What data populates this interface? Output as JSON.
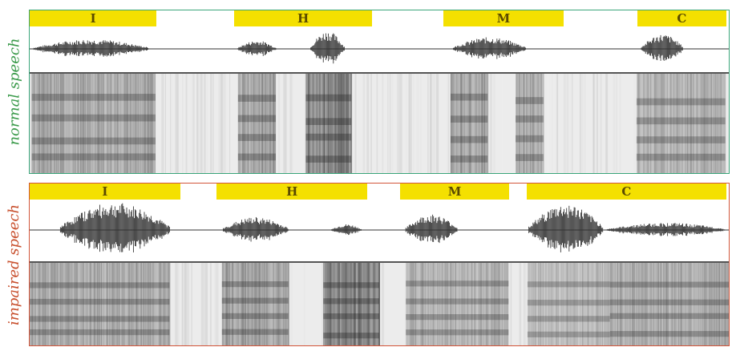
{
  "normal": {
    "label": "normal speech",
    "segments": [
      {
        "text": "I",
        "start": 0.0,
        "end": 0.182
      },
      {
        "text": "H",
        "start": 0.294,
        "end": 0.491
      },
      {
        "text": "M",
        "start": 0.594,
        "end": 0.766
      },
      {
        "text": "C",
        "start": 0.872,
        "end": 1.0
      }
    ],
    "bursts": [
      {
        "start": 0.006,
        "end": 0.17,
        "amp": 0.45
      },
      {
        "start": 0.298,
        "end": 0.352,
        "amp": 0.4
      },
      {
        "start": 0.402,
        "end": 0.45,
        "amp": 0.85
      },
      {
        "start": 0.606,
        "end": 0.71,
        "amp": 0.55
      },
      {
        "start": 0.875,
        "end": 0.935,
        "amp": 0.7
      }
    ],
    "spec_blocks": [
      {
        "start": 0.003,
        "end": 0.18,
        "dark": 0.55
      },
      {
        "start": 0.298,
        "end": 0.352,
        "dark": 0.6
      },
      {
        "start": 0.395,
        "end": 0.46,
        "dark": 0.8
      },
      {
        "start": 0.602,
        "end": 0.655,
        "dark": 0.6
      },
      {
        "start": 0.695,
        "end": 0.735,
        "dark": 0.55
      },
      {
        "start": 0.868,
        "end": 0.995,
        "dark": 0.5
      }
    ]
  },
  "impaired": {
    "label": "impaired speech",
    "segments": [
      {
        "text": "I",
        "start": 0.0,
        "end": 0.216
      },
      {
        "text": "H",
        "start": 0.268,
        "end": 0.485
      },
      {
        "text": "M",
        "start": 0.532,
        "end": 0.688
      },
      {
        "text": "C",
        "start": 0.713,
        "end": 1.0
      }
    ],
    "bursts": [
      {
        "start": 0.044,
        "end": 0.2,
        "amp": 0.95
      },
      {
        "start": 0.277,
        "end": 0.37,
        "amp": 0.45
      },
      {
        "start": 0.432,
        "end": 0.475,
        "amp": 0.2
      },
      {
        "start": 0.538,
        "end": 0.612,
        "amp": 0.55
      },
      {
        "start": 0.714,
        "end": 0.82,
        "amp": 0.9
      },
      {
        "start": 0.826,
        "end": 0.995,
        "amp": 0.25
      }
    ],
    "spec_blocks": [
      {
        "start": 0.0,
        "end": 0.2,
        "dark": 0.55
      },
      {
        "start": 0.275,
        "end": 0.37,
        "dark": 0.6
      },
      {
        "start": 0.42,
        "end": 0.5,
        "dark": 0.8
      },
      {
        "start": 0.538,
        "end": 0.685,
        "dark": 0.5
      },
      {
        "start": 0.712,
        "end": 0.83,
        "dark": 0.45
      },
      {
        "start": 0.83,
        "end": 1.0,
        "dark": 0.55
      }
    ]
  },
  "colors": {
    "bar": "#f4e000",
    "normal_frame": "#3aa57a",
    "impaired_frame": "#d2553a",
    "wave": "#333333"
  }
}
